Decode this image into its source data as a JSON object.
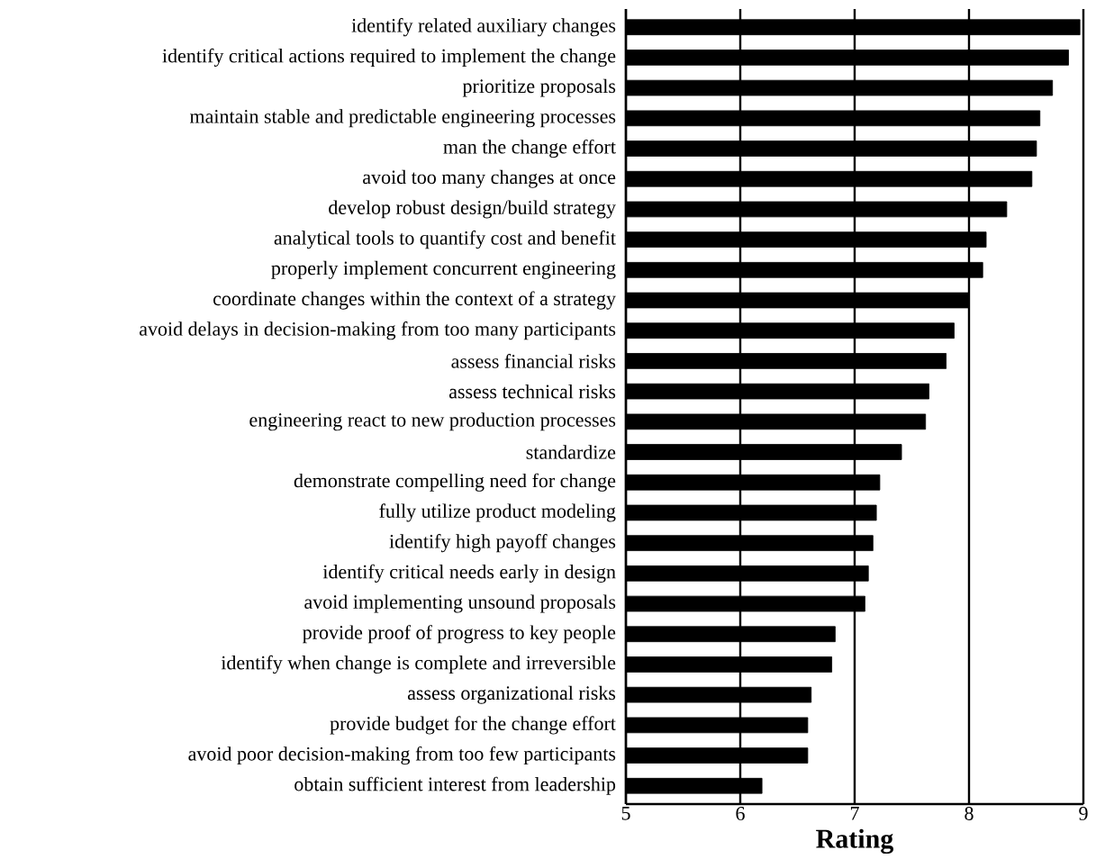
{
  "chart_data": {
    "type": "bar",
    "orientation": "horizontal",
    "xlabel": "Rating",
    "categories": [
      "identify related auxiliary changes",
      "identify critical actions required to implement the change",
      "prioritize proposals",
      "maintain stable and predictable engineering processes",
      "man the change effort",
      "avoid too many changes at once",
      "develop robust design/build strategy",
      "analytical tools to quantify cost and benefit",
      "properly implement concurrent engineering",
      "coordinate changes within the context of a strategy",
      "avoid delays in decision-making from too many participants",
      "assess financial risks",
      "assess technical risks",
      "engineering react to new production processes",
      "standardize",
      "demonstrate compelling need for change",
      "fully utilize product modeling",
      "identify high payoff changes",
      "identify critical needs early in design",
      "avoid implementing unsound proposals",
      "provide proof of progress to key people",
      "identify when change is complete and irreversible",
      "assess organizational risks",
      "provide budget for the change effort",
      "avoid poor decision-making from too few participants",
      "obtain sufficient interest from leadership"
    ],
    "values": [
      8.97,
      8.87,
      8.73,
      8.62,
      8.59,
      8.55,
      8.33,
      8.15,
      8.12,
      8.0,
      7.87,
      7.8,
      7.65,
      7.62,
      7.41,
      7.22,
      7.19,
      7.16,
      7.12,
      7.09,
      6.83,
      6.8,
      6.62,
      6.59,
      6.59,
      6.19
    ],
    "color": "#000000",
    "xlim": [
      5,
      9
    ],
    "xticks": [
      5,
      6,
      7,
      8,
      9
    ],
    "grid": "x"
  }
}
